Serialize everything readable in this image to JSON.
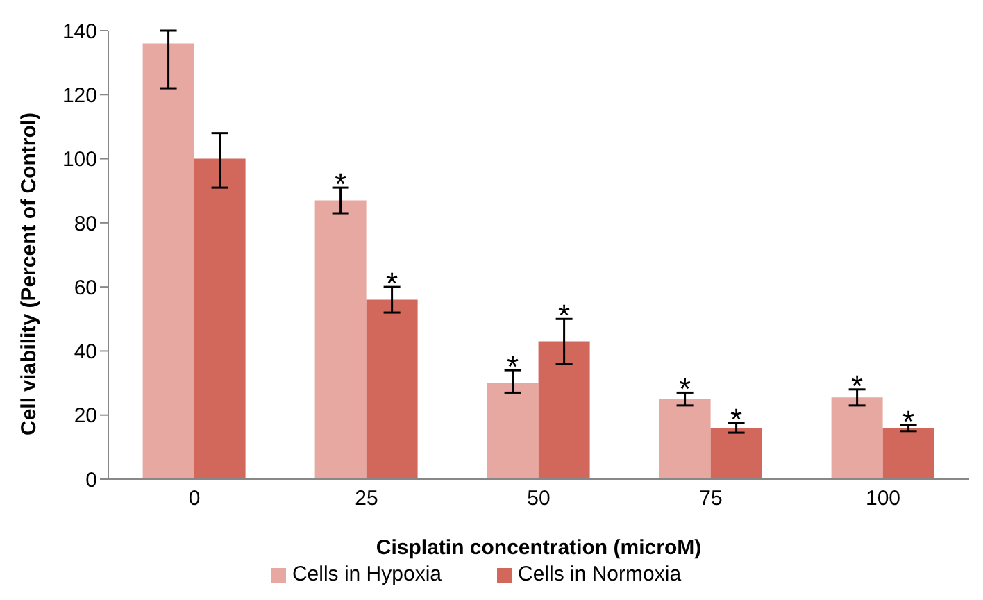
{
  "chart_data": {
    "type": "bar",
    "xlabel": "Cisplatin concentration (microM)",
    "ylabel": "Cell viability (Percent of Control)",
    "categories": [
      "0",
      "25",
      "50",
      "75",
      "100"
    ],
    "series": [
      {
        "name": "Cells in Hypoxia",
        "color": "#e6a8a0",
        "values": [
          136,
          87,
          30,
          25,
          25.5
        ],
        "errors": [
          [
            122,
            140
          ],
          [
            83,
            91
          ],
          [
            27,
            34
          ],
          [
            23,
            27
          ],
          [
            23,
            28
          ]
        ],
        "value_labels": [
          null,
          "*",
          "*",
          "*",
          "*"
        ]
      },
      {
        "name": "Cells in Normoxia",
        "color": "#d2675c",
        "values": [
          100,
          56,
          43,
          16,
          16
        ],
        "errors": [
          [
            91,
            108
          ],
          [
            52,
            60
          ],
          [
            36,
            50
          ],
          [
            14.5,
            17.5
          ],
          [
            15,
            17
          ]
        ],
        "value_labels": [
          null,
          "*",
          "*",
          "*",
          "*"
        ]
      }
    ],
    "ylim": [
      0,
      140
    ],
    "yticks": [
      0,
      20,
      40,
      60,
      80,
      100,
      120,
      140
    ],
    "grid": false,
    "legend": "bottom"
  }
}
